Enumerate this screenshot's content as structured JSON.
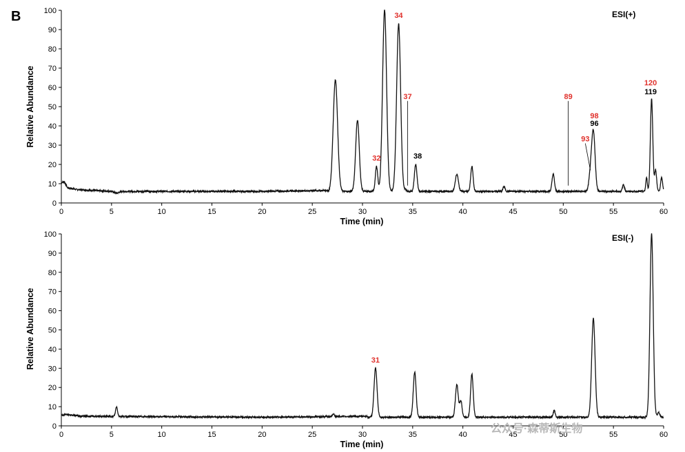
{
  "figure": {
    "panel_letter": "B",
    "watermark": "公众号·森蒂斯生物"
  },
  "chart_data": [
    {
      "type": "line",
      "mode_label": "ESI(+)",
      "xlabel": "Time (min)",
      "ylabel": "Relative Abundance",
      "xlim": [
        0,
        60
      ],
      "ylim": [
        0,
        100
      ],
      "x_ticks": [
        0,
        5,
        10,
        15,
        20,
        25,
        30,
        35,
        40,
        45,
        50,
        55,
        60
      ],
      "y_ticks": [
        0,
        10,
        20,
        30,
        40,
        50,
        60,
        70,
        80,
        90,
        100
      ],
      "baseline": 6,
      "series": [
        {
          "values_note": "",
          "points": [
            [
              0,
              10.5
            ],
            [
              0.3,
              11
            ],
            [
              0.6,
              8
            ],
            [
              1.5,
              7
            ],
            [
              5,
              6
            ],
            [
              5.5,
              5
            ],
            [
              6,
              6
            ],
            [
              20,
              6
            ],
            [
              26.5,
              6.5
            ]
          ],
          "peaks": [
            {
              "x": 27.3,
              "y": 64,
              "w": 0.22
            },
            {
              "x": 29.5,
              "y": 43,
              "w": 0.18
            },
            {
              "x": 31.4,
              "y": 19,
              "w": 0.12
            },
            {
              "x": 32.2,
              "y": 100,
              "w": 0.2
            },
            {
              "x": 33.6,
              "y": 93,
              "w": 0.2
            },
            {
              "x": 34.3,
              "y": 7,
              "w": 0.1
            },
            {
              "x": 35.3,
              "y": 20,
              "w": 0.13
            },
            {
              "x": 39.4,
              "y": 15,
              "w": 0.15
            },
            {
              "x": 40.9,
              "y": 19,
              "w": 0.12
            },
            {
              "x": 44.1,
              "y": 8.5,
              "w": 0.1
            },
            {
              "x": 49.0,
              "y": 15,
              "w": 0.12
            },
            {
              "x": 52.7,
              "y": 14,
              "w": 0.15
            },
            {
              "x": 53.0,
              "y": 37,
              "w": 0.17
            },
            {
              "x": 56.0,
              "y": 9.5,
              "w": 0.1
            },
            {
              "x": 58.3,
              "y": 13,
              "w": 0.08
            },
            {
              "x": 58.8,
              "y": 54,
              "w": 0.12
            },
            {
              "x": 59.2,
              "y": 17,
              "w": 0.1
            },
            {
              "x": 59.8,
              "y": 13,
              "w": 0.1
            }
          ]
        }
      ],
      "annotations": [
        {
          "text": "34",
          "color": "red",
          "x": 33.6,
          "y": 96
        },
        {
          "text": "37",
          "color": "red",
          "x": 34.5,
          "y": 54,
          "line_to_y": 9
        },
        {
          "text": "32",
          "color": "red",
          "x": 31.4,
          "y": 22
        },
        {
          "text": "38",
          "color": "black",
          "x": 35.5,
          "y": 23
        },
        {
          "text": "89",
          "color": "red",
          "x": 50.5,
          "y": 54,
          "line_to_y": 9
        },
        {
          "text": "98",
          "color": "red",
          "x": 53.1,
          "y": 44
        },
        {
          "text": "96",
          "color": "black",
          "x": 53.1,
          "y": 40
        },
        {
          "text": "93",
          "color": "red",
          "x": 52.2,
          "y": 32,
          "line_to_x": 52.7,
          "line_to_y": 17
        },
        {
          "text": "120",
          "color": "red",
          "x": 58.7,
          "y": 61
        },
        {
          "text": "119",
          "color": "black",
          "x": 58.7,
          "y": 56.5
        }
      ]
    },
    {
      "type": "line",
      "mode_label": "ESI(-)",
      "xlabel": "Time (min)",
      "ylabel": "Relative Abundance",
      "xlim": [
        0,
        60
      ],
      "ylim": [
        0,
        100
      ],
      "x_ticks": [
        0,
        5,
        10,
        15,
        20,
        25,
        30,
        35,
        40,
        45,
        50,
        55,
        60
      ],
      "y_ticks": [
        0,
        10,
        20,
        30,
        40,
        50,
        60,
        70,
        80,
        90,
        100
      ],
      "baseline": 4.5,
      "series": [
        {
          "values_note": "",
          "points": [
            [
              0,
              5.5
            ],
            [
              0.5,
              6
            ],
            [
              2,
              5
            ],
            [
              20,
              4.5
            ],
            [
              30.5,
              5
            ]
          ],
          "peaks": [
            {
              "x": 5.5,
              "y": 9.5,
              "w": 0.1
            },
            {
              "x": 27.1,
              "y": 6,
              "w": 0.1
            },
            {
              "x": 31.3,
              "y": 30,
              "w": 0.15
            },
            {
              "x": 35.2,
              "y": 28,
              "w": 0.14
            },
            {
              "x": 39.4,
              "y": 21.5,
              "w": 0.14
            },
            {
              "x": 39.8,
              "y": 13,
              "w": 0.12
            },
            {
              "x": 40.9,
              "y": 27,
              "w": 0.13
            },
            {
              "x": 49.1,
              "y": 8,
              "w": 0.1
            },
            {
              "x": 53.0,
              "y": 56,
              "w": 0.17
            },
            {
              "x": 58.8,
              "y": 100,
              "w": 0.16
            },
            {
              "x": 59.5,
              "y": 7,
              "w": 0.12
            }
          ]
        }
      ],
      "annotations": [
        {
          "text": "31",
          "color": "red",
          "x": 31.3,
          "y": 33
        }
      ]
    }
  ]
}
